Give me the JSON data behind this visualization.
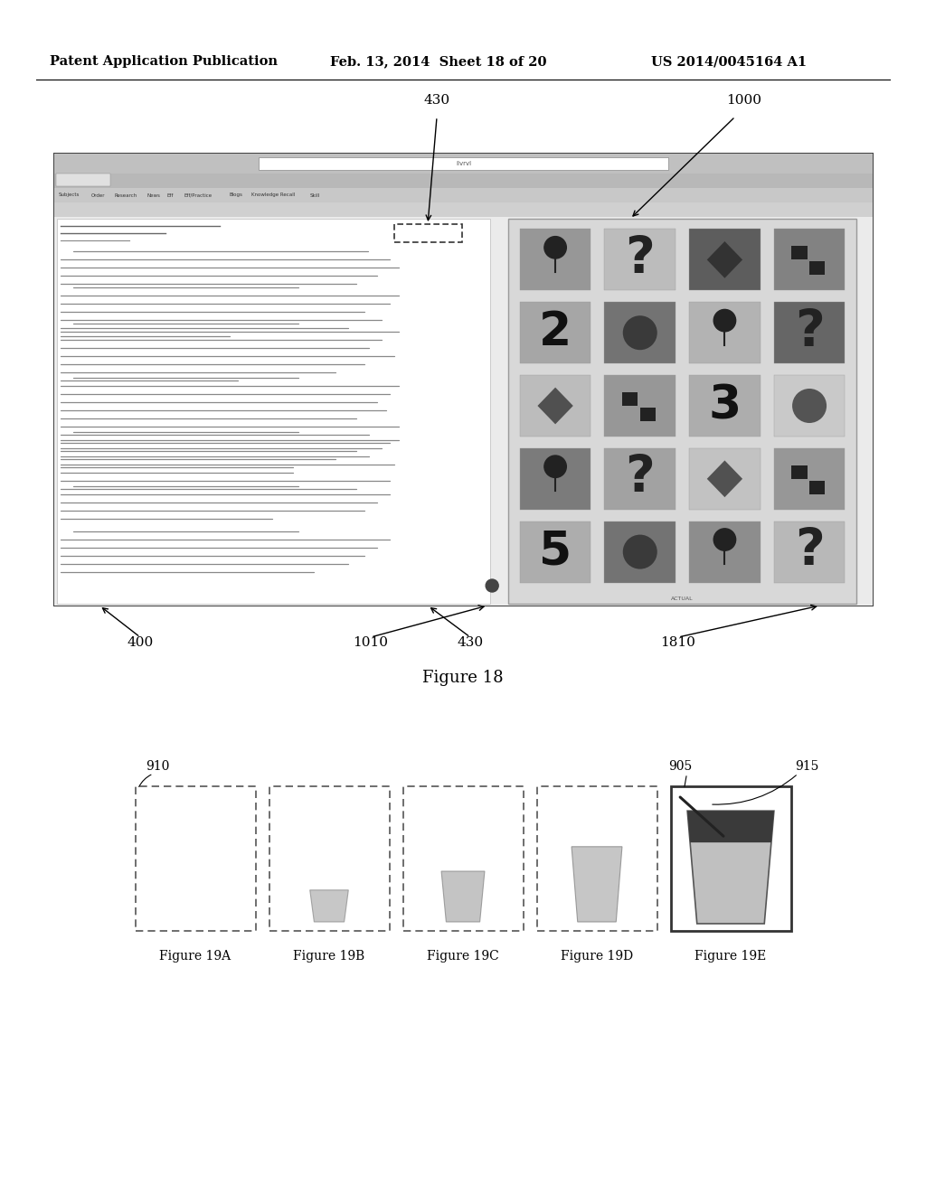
{
  "bg_color": "#ffffff",
  "header_left": "Patent Application Publication",
  "header_mid": "Feb. 13, 2014  Sheet 18 of 20",
  "header_right": "US 2014/0045164 A1",
  "fig18_title": "Figure 18",
  "fig19_captions": [
    "Figure 19A",
    "Figure 19B",
    "Figure 19C",
    "Figure 19D",
    "Figure 19E"
  ]
}
